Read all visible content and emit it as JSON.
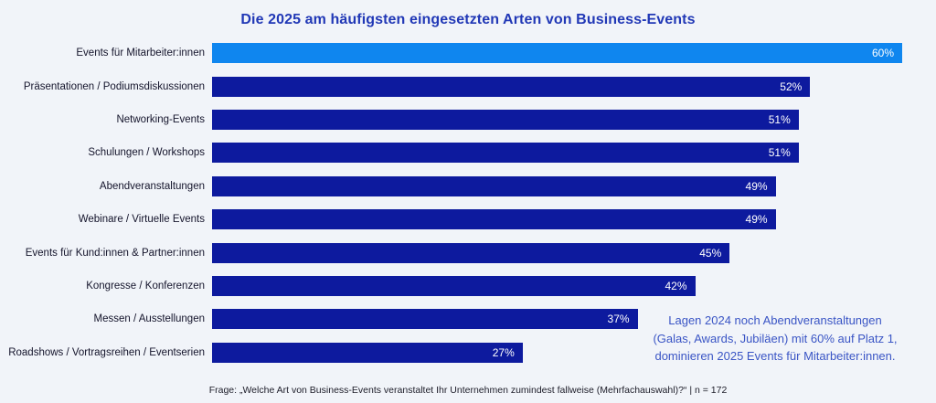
{
  "page": {
    "background": "#f1f4f9"
  },
  "chart_data": {
    "type": "bar",
    "orientation": "horizontal",
    "title": "Die 2025 am häufigsten eingesetzten Arten von Business-Events",
    "categories": [
      "Events für Mitarbeiter:innen",
      "Präsentationen / Podiumsdiskussionen",
      "Networking-Events",
      "Schulungen / Workshops",
      "Abendveranstaltungen",
      "Webinare / Virtuelle Events",
      "Events für Kund:innen & Partner:innen",
      "Kongresse / Konferenzen",
      "Messen / Ausstellungen",
      "Roadshows / Vortragsreihen / Eventserien"
    ],
    "values": [
      60,
      52,
      51,
      51,
      49,
      49,
      45,
      42,
      37,
      27
    ],
    "value_labels": [
      "60%",
      "52%",
      "51%",
      "51%",
      "49%",
      "49%",
      "45%",
      "42%",
      "37%",
      "27%"
    ],
    "value_suffix": "%",
    "xlim": [
      0,
      60
    ],
    "grid": false,
    "legend": false,
    "highlight_index": 0,
    "colors": {
      "highlight_bar": "#0f86ef",
      "default_bar": "#0d1a9e",
      "value_text": "#ffffff",
      "title_text": "#2138b6",
      "category_text": "#14142b"
    }
  },
  "annotation": {
    "lines": [
      "Lagen 2024 noch Abendveranstaltungen",
      "(Galas, Awards, Jubiläen) mit 60% auf Platz 1,",
      "dominieren 2025 Events für Mitarbeiter:innen."
    ],
    "color": "#3a55c5"
  },
  "footer": {
    "text": "Frage: „Welche Art von Business-Events veranstaltet Ihr Unternehmen zumindest fallweise (Mehrfachauswahl)?“ | n = 172"
  }
}
